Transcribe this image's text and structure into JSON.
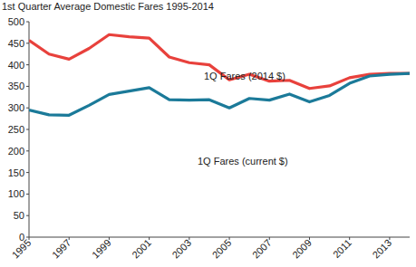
{
  "chart_data": {
    "type": "line",
    "title": "1st Quarter Average Domestic Fares 1995-2014",
    "x": [
      1995,
      1996,
      1997,
      1998,
      1999,
      2000,
      2001,
      2002,
      2003,
      2004,
      2005,
      2006,
      2007,
      2008,
      2009,
      2010,
      2011,
      2012,
      2013,
      2014
    ],
    "series": [
      {
        "name": "1Q Fares (2014 $)",
        "color": "#e8413c",
        "values": [
          457,
          425,
          413,
          438,
          470,
          465,
          462,
          418,
          405,
          400,
          365,
          378,
          362,
          364,
          345,
          351,
          370,
          378,
          380,
          380
        ]
      },
      {
        "name": "1Q Fares (current $)",
        "color": "#1b7a99",
        "values": [
          295,
          284,
          283,
          306,
          331,
          339,
          347,
          319,
          318,
          319,
          300,
          322,
          318,
          332,
          314,
          329,
          357,
          374,
          378,
          380
        ]
      }
    ],
    "xlim": [
      1995,
      2014
    ],
    "xticks": [
      1995,
      1997,
      1999,
      2001,
      2003,
      2005,
      2007,
      2009,
      2011,
      2013
    ],
    "ylim": [
      0,
      500
    ],
    "yticks": [
      0,
      50,
      100,
      150,
      200,
      250,
      300,
      350,
      400,
      450,
      500
    ],
    "grid": false
  }
}
